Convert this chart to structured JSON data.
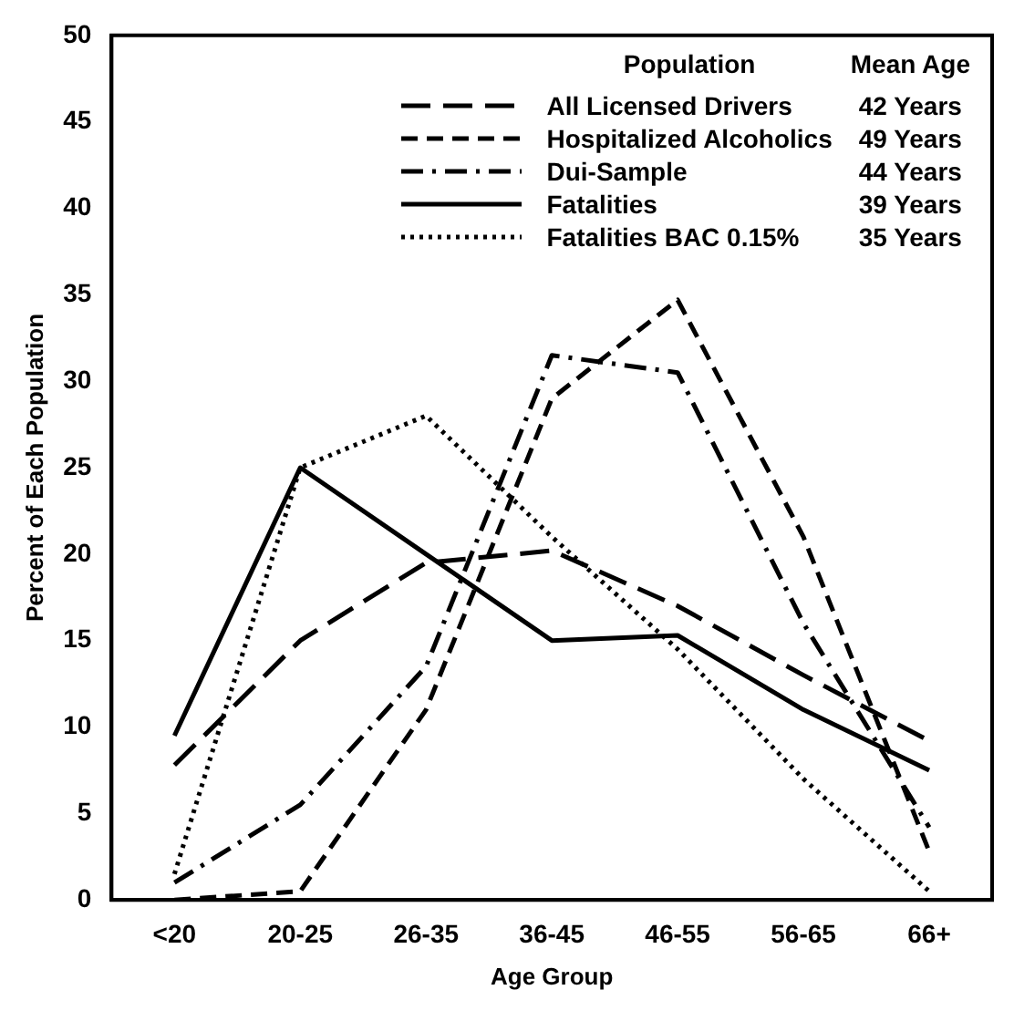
{
  "chart_data": {
    "type": "line",
    "xlabel": "Age Group",
    "ylabel": "Percent of Each Population",
    "legend_title": "Population",
    "categories": [
      "<20",
      "20-25",
      "26-35",
      "36-45",
      "46-55",
      "56-65",
      "66+"
    ],
    "series": [
      {
        "name": "All Licensed Drivers",
        "color": "#000000",
        "line_style": "dashed",
        "values": [
          7.8,
          15,
          19.5,
          20.2,
          17,
          13,
          9.2
        ]
      },
      {
        "name": "Hospitalized Alcoholics",
        "color": "#000000",
        "line_style": "dashed",
        "values": [
          0,
          0.5,
          11,
          29,
          34.7,
          21,
          2.8
        ]
      },
      {
        "name": "Dui-Sample",
        "color": "#000000",
        "line_style": "dashed",
        "values": [
          1,
          5.5,
          13.5,
          31.5,
          30.5,
          16,
          4.2
        ]
      },
      {
        "name": "Fatalities",
        "color": "#000000",
        "line_style": "solid",
        "values": [
          9.5,
          25,
          20,
          15,
          15.3,
          11,
          7.5
        ]
      },
      {
        "name": "Fatalities  BAC 0.15%",
        "color": "#000000",
        "line_style": "dotted",
        "values": [
          1.5,
          25,
          28,
          21,
          14.5,
          7,
          0.5
        ]
      }
    ],
    "annotations": [
      "Mean Age",
      "42 Years",
      "49 Years",
      "44 Years",
      "39 Years",
      "35 Years"
    ],
    "ylim": [
      0,
      50
    ],
    "yticks": [
      0,
      5,
      10,
      15,
      20,
      25,
      30,
      35,
      40,
      45,
      50
    ],
    "grid": false,
    "legend": "top right",
    "marker": "none"
  }
}
